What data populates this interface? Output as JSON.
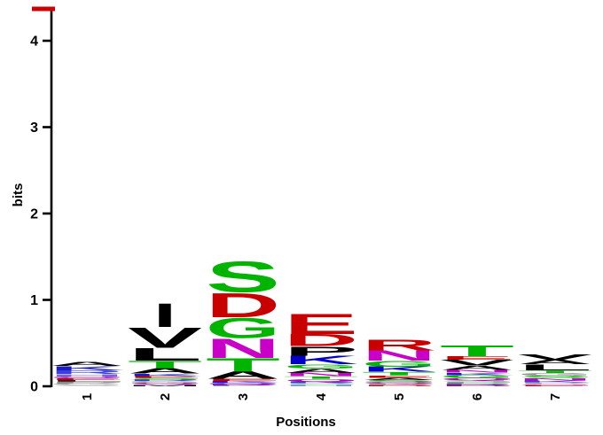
{
  "figure": {
    "title": "",
    "background": "#ffffff",
    "axis_color": "#000000",
    "max_marker_color": "#cc0000"
  },
  "chart_data": {
    "type": "sequence_logo",
    "title": "",
    "xlabel": "Positions",
    "ylabel": "bits",
    "ylim": [
      0,
      4.32
    ],
    "yticks": [
      0,
      1,
      2,
      3,
      4
    ],
    "ytick_labels": [
      "0",
      "1",
      "2",
      "3",
      "4"
    ],
    "xtick_labels": [
      "1",
      "2",
      "3",
      "4",
      "5",
      "6",
      "7"
    ],
    "grid": false,
    "legend": false,
    "max_bits_marker": true,
    "positions": [
      {
        "position": "1",
        "total_bits": 0.3,
        "letters": [
          {
            "aa": "A",
            "bits": 0.05,
            "color": "#000000"
          },
          {
            "aa": "K",
            "bits": 0.05,
            "color": "#1c1cc4"
          },
          {
            "aa": "R",
            "bits": 0.04,
            "color": "#3c3cdc"
          },
          {
            "aa": "H",
            "bits": 0.03,
            "color": "#6868e8"
          },
          {
            "aa": "Q",
            "bits": 0.022,
            "color": "#b400b4"
          },
          {
            "aa": "E",
            "bits": 0.02,
            "color": "#c40000"
          },
          {
            "aa": "L",
            "bits": 0.02,
            "color": "#202020"
          },
          {
            "aa": "P",
            "bits": 0.02,
            "color": "#8c8c8c"
          },
          {
            "aa": "G",
            "bits": 0.018,
            "color": "#a8a8a8"
          },
          {
            "aa": "S",
            "bits": 0.015,
            "color": "#c0c0c0"
          }
        ]
      },
      {
        "position": "2",
        "total_bits": 0.97,
        "letters": [
          {
            "aa": "I",
            "bits": 0.28,
            "color": "#000000"
          },
          {
            "aa": "V",
            "bits": 0.24,
            "color": "#000000"
          },
          {
            "aa": "L",
            "bits": 0.15,
            "color": "#000000"
          },
          {
            "aa": "T",
            "bits": 0.09,
            "color": "#00b400"
          },
          {
            "aa": "A",
            "bits": 0.06,
            "color": "#000000"
          },
          {
            "aa": "K",
            "bits": 0.028,
            "color": "#1c1cc4"
          },
          {
            "aa": "E",
            "bits": 0.022,
            "color": "#c40000"
          },
          {
            "aa": "S",
            "bits": 0.02,
            "color": "#00b400"
          },
          {
            "aa": "R",
            "bits": 0.018,
            "color": "#3c3cdc"
          },
          {
            "aa": "G",
            "bits": 0.018,
            "color": "#909090"
          },
          {
            "aa": "Q",
            "bits": 0.015,
            "color": "#b400b4"
          },
          {
            "aa": "P",
            "bits": 0.015,
            "color": "#a8a8a8"
          },
          {
            "aa": "M",
            "bits": 0.012,
            "color": "#000000"
          }
        ]
      },
      {
        "position": "3",
        "total_bits": 1.45,
        "letters": [
          {
            "aa": "S",
            "bits": 0.36,
            "color": "#00b400"
          },
          {
            "aa": "D",
            "bits": 0.29,
            "color": "#c80000"
          },
          {
            "aa": "G",
            "bits": 0.24,
            "color": "#00b400"
          },
          {
            "aa": "N",
            "bits": 0.23,
            "color": "#c800c8"
          },
          {
            "aa": "T",
            "bits": 0.16,
            "color": "#00b400"
          },
          {
            "aa": "A",
            "bits": 0.085,
            "color": "#000000"
          },
          {
            "aa": "E",
            "bits": 0.025,
            "color": "#c40000"
          },
          {
            "aa": "K",
            "bits": 0.02,
            "color": "#1c1cc4"
          },
          {
            "aa": "Q",
            "bits": 0.018,
            "color": "#b400b4"
          },
          {
            "aa": "R",
            "bits": 0.012,
            "color": "#3c3cdc"
          },
          {
            "aa": "P",
            "bits": 0.01,
            "color": "#909090"
          }
        ]
      },
      {
        "position": "4",
        "total_bits": 0.85,
        "letters": [
          {
            "aa": "E",
            "bits": 0.24,
            "color": "#c80000"
          },
          {
            "aa": "D",
            "bits": 0.14,
            "color": "#c80000"
          },
          {
            "aa": "P",
            "bits": 0.11,
            "color": "#000000"
          },
          {
            "aa": "K",
            "bits": 0.1,
            "color": "#0000c8"
          },
          {
            "aa": "G",
            "bits": 0.05,
            "color": "#00b400"
          },
          {
            "aa": "A",
            "bits": 0.05,
            "color": "#000000"
          },
          {
            "aa": "N",
            "bits": 0.04,
            "color": "#c800c8"
          },
          {
            "aa": "T",
            "bits": 0.03,
            "color": "#00b400"
          },
          {
            "aa": "Q",
            "bits": 0.028,
            "color": "#b400b4"
          },
          {
            "aa": "R",
            "bits": 0.02,
            "color": "#3c3cdc"
          },
          {
            "aa": "S",
            "bits": 0.02,
            "color": "#6fd66f"
          },
          {
            "aa": "H",
            "bits": 0.018,
            "color": "#8c8cec"
          }
        ]
      },
      {
        "position": "5",
        "total_bits": 0.55,
        "letters": [
          {
            "aa": "R",
            "bits": 0.13,
            "color": "#c80000"
          },
          {
            "aa": "N",
            "bits": 0.12,
            "color": "#c800c8"
          },
          {
            "aa": "G",
            "bits": 0.07,
            "color": "#00b400"
          },
          {
            "aa": "K",
            "bits": 0.06,
            "color": "#0000c8"
          },
          {
            "aa": "T",
            "bits": 0.04,
            "color": "#00b400"
          },
          {
            "aa": "E",
            "bits": 0.03,
            "color": "#c40000"
          },
          {
            "aa": "A",
            "bits": 0.025,
            "color": "#000000"
          },
          {
            "aa": "S",
            "bits": 0.022,
            "color": "#00b400"
          },
          {
            "aa": "Q",
            "bits": 0.02,
            "color": "#b400b4"
          },
          {
            "aa": "P",
            "bits": 0.018,
            "color": "#909090"
          },
          {
            "aa": "D",
            "bits": 0.012,
            "color": "#c80000"
          }
        ]
      },
      {
        "position": "6",
        "total_bits": 0.48,
        "letters": [
          {
            "aa": "T",
            "bits": 0.13,
            "color": "#00b400"
          },
          {
            "aa": "E",
            "bits": 0.04,
            "color": "#c80000"
          },
          {
            "aa": "V",
            "bits": 0.065,
            "color": "#000000"
          },
          {
            "aa": "A",
            "bits": 0.05,
            "color": "#000000"
          },
          {
            "aa": "N",
            "bits": 0.035,
            "color": "#c800c8"
          },
          {
            "aa": "K",
            "bits": 0.03,
            "color": "#1c1cc4"
          },
          {
            "aa": "G",
            "bits": 0.03,
            "color": "#00b400"
          },
          {
            "aa": "Q",
            "bits": 0.025,
            "color": "#b400b4"
          },
          {
            "aa": "S",
            "bits": 0.022,
            "color": "#6fd66f"
          },
          {
            "aa": "P",
            "bits": 0.02,
            "color": "#909090"
          },
          {
            "aa": "R",
            "bits": 0.018,
            "color": "#4444dc"
          },
          {
            "aa": "D",
            "bits": 0.012,
            "color": "#c80000"
          }
        ]
      },
      {
        "position": "7",
        "total_bits": 0.38,
        "letters": [
          {
            "aa": "V",
            "bits": 0.06,
            "color": "#000000"
          },
          {
            "aa": "A",
            "bits": 0.055,
            "color": "#000000"
          },
          {
            "aa": "L",
            "bits": 0.07,
            "color": "#000000"
          },
          {
            "aa": "T",
            "bits": 0.03,
            "color": "#00b400"
          },
          {
            "aa": "G",
            "bits": 0.03,
            "color": "#909090"
          },
          {
            "aa": "S",
            "bits": 0.025,
            "color": "#00b400"
          },
          {
            "aa": "N",
            "bits": 0.03,
            "color": "#c800c8"
          },
          {
            "aa": "K",
            "bits": 0.022,
            "color": "#3c3cdc"
          },
          {
            "aa": "P",
            "bits": 0.02,
            "color": "#a8a8a8"
          },
          {
            "aa": "Q",
            "bits": 0.015,
            "color": "#cc66cc"
          },
          {
            "aa": "E",
            "bits": 0.012,
            "color": "#c40000"
          }
        ]
      }
    ]
  }
}
